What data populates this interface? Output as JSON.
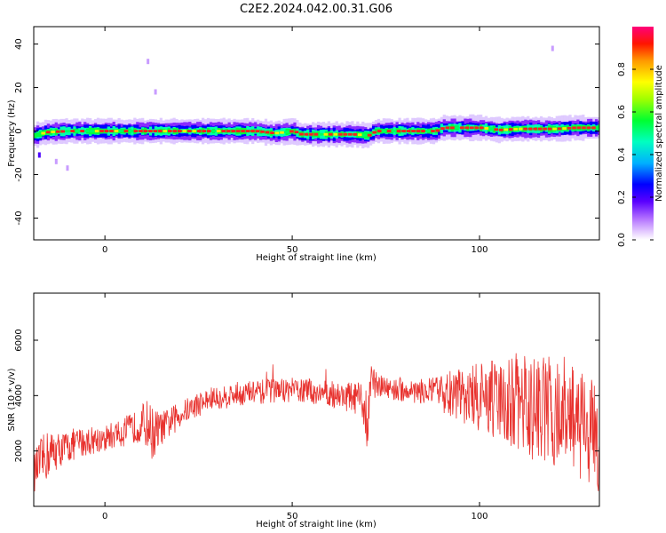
{
  "title": "C2E2.2024.042.00.31.G06",
  "colors": {
    "snr_line": "#e8322e",
    "axes": "#000000",
    "background": "#ffffff"
  },
  "chart_data": [
    {
      "type": "heatmap",
      "xlabel": "Height of straight line (km)",
      "ylabel": "Frequency (Hz)",
      "xlim": [
        -19,
        132
      ],
      "ylim": [
        -50,
        48
      ],
      "xticks": [
        0,
        50,
        100
      ],
      "yticks": [
        40,
        20,
        0,
        -20,
        -40
      ],
      "colorbar": {
        "label": "Normalized spectral amplitude",
        "range": [
          0,
          1
        ],
        "ticks": [
          0.0,
          0.2,
          0.4,
          0.6,
          0.8
        ],
        "colormap": [
          "#ffffff",
          "#c79cff",
          "#7a00ff",
          "#0000ff",
          "#00e6ff",
          "#00ff55",
          "#ffff00",
          "#ff8800",
          "#ff0000",
          "#ff0080"
        ]
      },
      "ridge": [
        {
          "x": -19,
          "f": -2.0
        },
        {
          "x": -16,
          "f": -0.5
        },
        {
          "x": -10,
          "f": 0.0
        },
        {
          "x": 0,
          "f": 0.0
        },
        {
          "x": 10,
          "f": 0.0
        },
        {
          "x": 20,
          "f": 0.0
        },
        {
          "x": 30,
          "f": 0.0
        },
        {
          "x": 40,
          "f": 0.0
        },
        {
          "x": 45,
          "f": -1.0
        },
        {
          "x": 50,
          "f": 0.0
        },
        {
          "x": 52,
          "f": -1.5
        },
        {
          "x": 60,
          "f": -1.5
        },
        {
          "x": 66,
          "f": -1.5
        },
        {
          "x": 70,
          "f": -2.0
        },
        {
          "x": 72,
          "f": 0.0
        },
        {
          "x": 80,
          "f": 0.0
        },
        {
          "x": 88,
          "f": 0.0
        },
        {
          "x": 90,
          "f": 1.5
        },
        {
          "x": 100,
          "f": 1.5
        },
        {
          "x": 105,
          "f": 0.5
        },
        {
          "x": 110,
          "f": 1.0
        },
        {
          "x": 120,
          "f": 1.0
        },
        {
          "x": 125,
          "f": 1.5
        },
        {
          "x": 132,
          "f": 1.5
        }
      ],
      "scatter_blobs": [
        {
          "x": -17.5,
          "f": -11,
          "amp": 0.25
        },
        {
          "x": -13,
          "f": -14,
          "amp": 0.1
        },
        {
          "x": -10,
          "f": -17,
          "amp": 0.1
        },
        {
          "x": 11.5,
          "f": 32,
          "amp": 0.1
        },
        {
          "x": 13.5,
          "f": 18,
          "amp": 0.1
        },
        {
          "x": 119.5,
          "f": 38,
          "amp": 0.05
        }
      ]
    },
    {
      "type": "line",
      "xlabel": "Height of straight line (km)",
      "ylabel": "SNR (10 * v/v)",
      "xlim": [
        -19,
        132
      ],
      "ylim": [
        0,
        7700
      ],
      "xticks": [
        0,
        50,
        100
      ],
      "yticks": [
        2000,
        4000,
        6000
      ],
      "series": [
        {
          "color": "#e8322e",
          "x": [
            -19,
            -17,
            -15,
            -13,
            -11,
            -9,
            -7,
            -5,
            -3,
            -1,
            1,
            3,
            5,
            7,
            9,
            11,
            13,
            15,
            17,
            19,
            21,
            23,
            25,
            27,
            29,
            31,
            33,
            35,
            37,
            39,
            41,
            43,
            45,
            47,
            49,
            51,
            53,
            55,
            57,
            59,
            61,
            63,
            65,
            67,
            69,
            70,
            71,
            73,
            75,
            77,
            79,
            81,
            83,
            85,
            87,
            89,
            91,
            93,
            95,
            97,
            99,
            101,
            103,
            105,
            107,
            109,
            111,
            113,
            115,
            117,
            119,
            121,
            123,
            125,
            127,
            129,
            131
          ],
          "y": [
            1200,
            1600,
            1900,
            2000,
            2100,
            2200,
            2300,
            2350,
            2400,
            2450,
            2500,
            2600,
            2700,
            2800,
            2900,
            3000,
            2600,
            2800,
            3000,
            3200,
            3400,
            3550,
            3700,
            3800,
            3900,
            3950,
            4000,
            4050,
            4080,
            4100,
            4120,
            4150,
            4180,
            4200,
            4200,
            4200,
            4180,
            4150,
            4100,
            4100,
            4050,
            4000,
            3950,
            3900,
            3700,
            2600,
            4600,
            4300,
            4300,
            4250,
            4200,
            4200,
            4150,
            4150,
            4150,
            4100,
            4100,
            4050,
            4000,
            4000,
            3950,
            3900,
            3850,
            3800,
            3800,
            3750,
            3700,
            3600,
            3550,
            3500,
            3400,
            3300,
            3200,
            3100,
            3000,
            2800,
            2400
          ],
          "noise_amplitude": [
            700,
            900,
            900,
            700,
            600,
            600,
            550,
            550,
            500,
            500,
            500,
            500,
            550,
            550,
            600,
            900,
            1000,
            600,
            550,
            500,
            450,
            450,
            450,
            450,
            450,
            450,
            450,
            450,
            450,
            450,
            450,
            450,
            450,
            450,
            450,
            450,
            450,
            450,
            450,
            450,
            500,
            500,
            550,
            600,
            700,
            800,
            600,
            450,
            450,
            450,
            450,
            450,
            450,
            450,
            500,
            600,
            800,
            900,
            1000,
            1100,
            1200,
            1300,
            1400,
            1500,
            1600,
            1800,
            1900,
            1900,
            2000,
            2000,
            2000,
            2000,
            2000,
            2000,
            2000,
            2000,
            2000
          ]
        }
      ]
    }
  ]
}
